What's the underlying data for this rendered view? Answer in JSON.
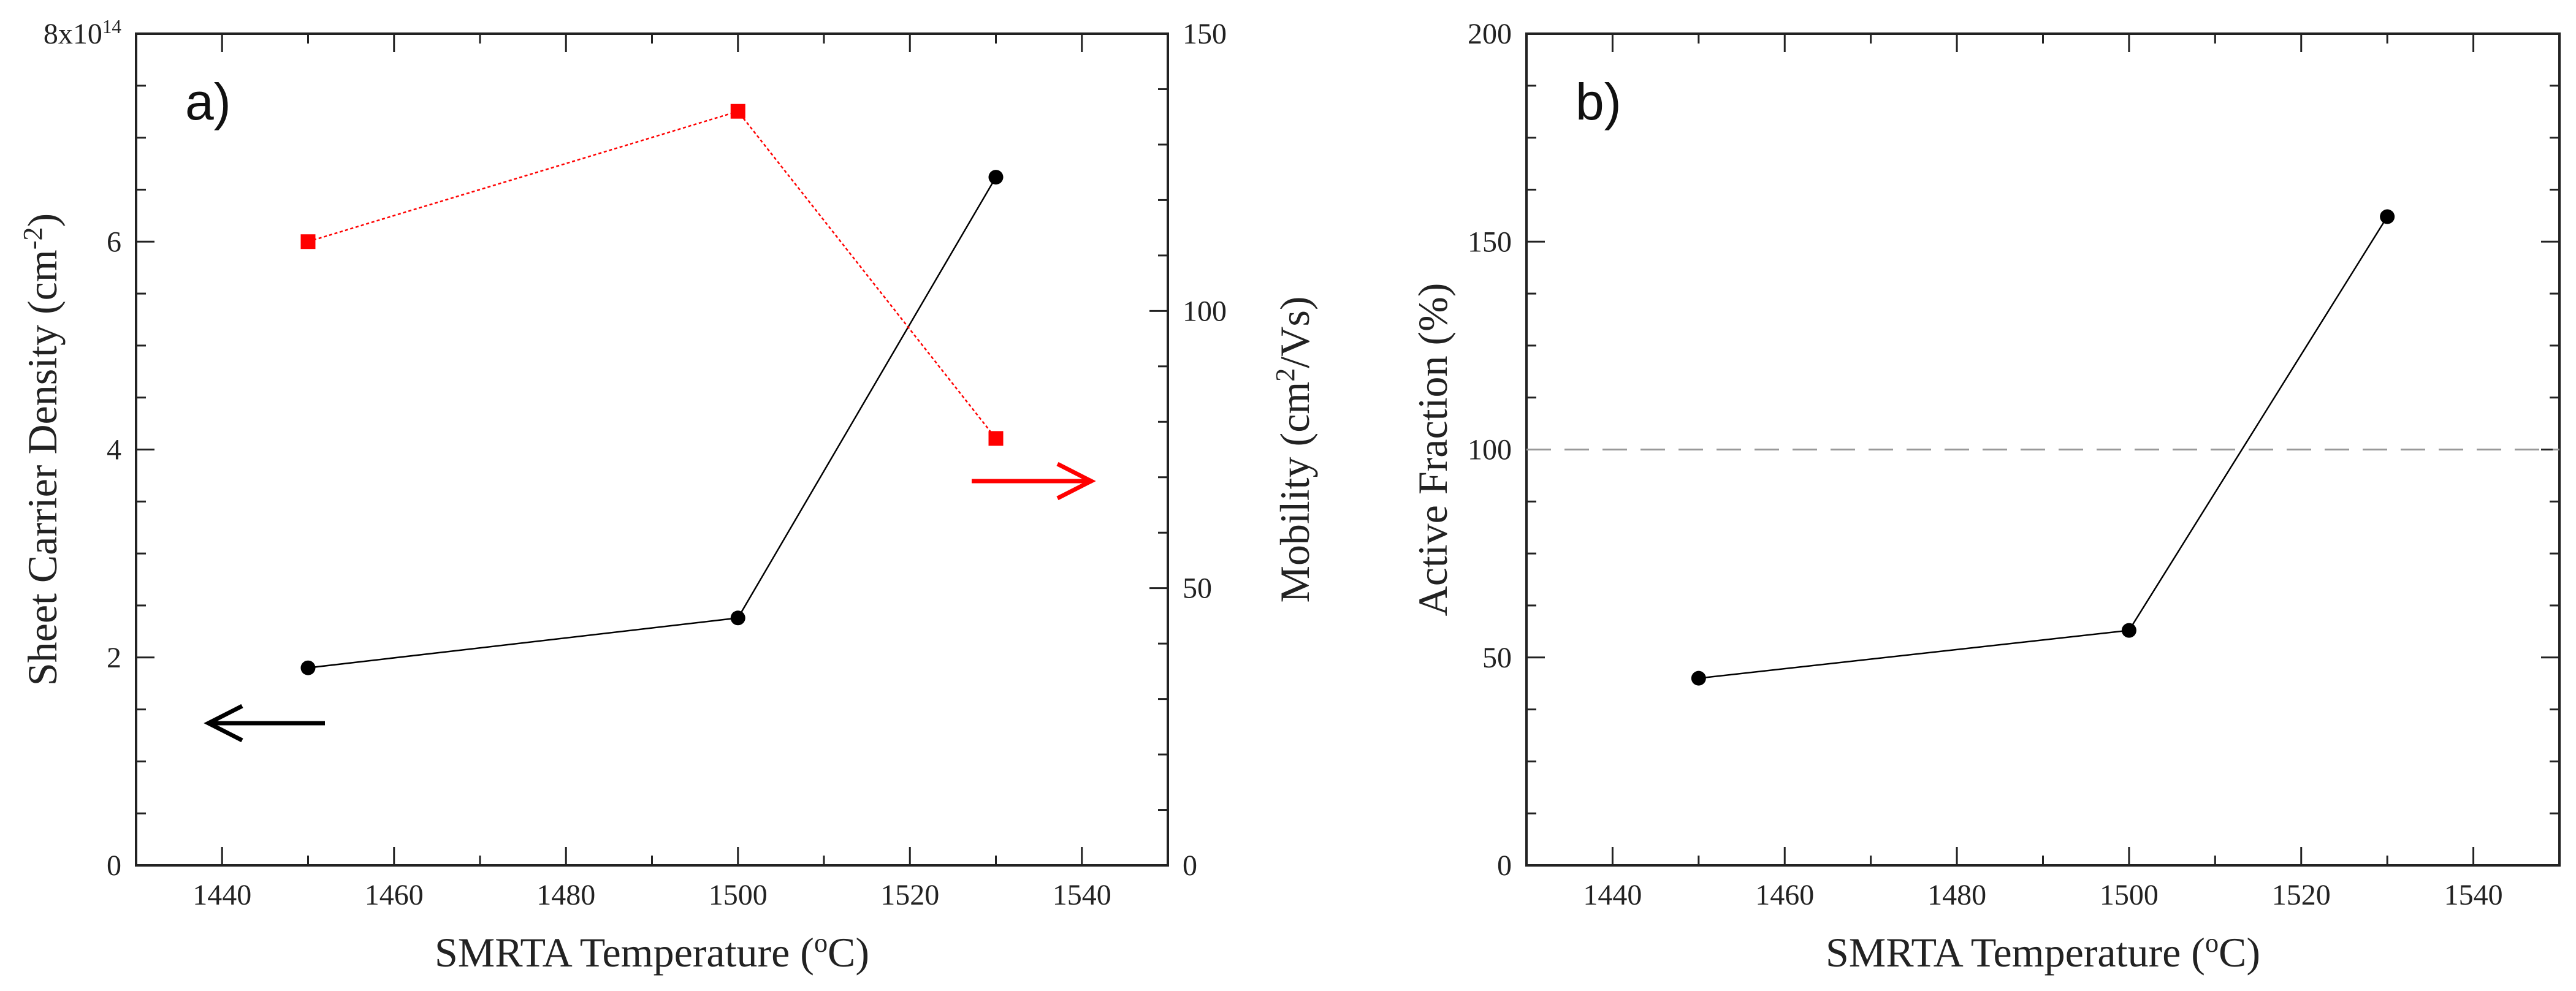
{
  "chart_data": [
    {
      "id": "a",
      "type": "line",
      "panel_label": "a)",
      "xlabel": {
        "main": "SMRTA Temperature (",
        "sup": "o",
        "tail": "C)"
      },
      "ylabel_left": {
        "main": "Sheet Carrier Density (cm",
        "sup": "-2",
        "tail": ")"
      },
      "ylabel_right": {
        "main": "Mobility (cm",
        "sup": "2",
        "tail": "/Vs)"
      },
      "xlim": [
        1430,
        1550
      ],
      "xticks": [
        1440,
        1460,
        1480,
        1500,
        1520,
        1540
      ],
      "xtick_labels": [
        "1440",
        "1460",
        "1480",
        "1500",
        "1520",
        "1540"
      ],
      "ylim_left": [
        0,
        8
      ],
      "yticks_left": [
        0,
        2,
        4,
        6
      ],
      "ytick_labels_left": [
        "0",
        "2",
        "4",
        "6"
      ],
      "ytop_left_label": {
        "main": "8x10",
        "sup": "14"
      },
      "ylim_right": [
        0,
        150
      ],
      "yticks_right": [
        0,
        50,
        100,
        150
      ],
      "ytick_labels_right": [
        "0",
        "50",
        "100",
        "150"
      ],
      "series": [
        {
          "name": "Sheet Carrier Density",
          "axis": "left",
          "color": "#000000",
          "marker": "circle",
          "x": [
            1450,
            1500,
            1530
          ],
          "y": [
            1.9,
            2.38,
            6.62
          ]
        },
        {
          "name": "Mobility",
          "axis": "right",
          "color": "#ff0000",
          "marker": "square",
          "x": [
            1450,
            1500,
            1530
          ],
          "y": [
            112.5,
            136,
            77
          ]
        }
      ],
      "annotations": [
        {
          "type": "arrow",
          "direction": "left",
          "color": "#000000",
          "meaning": "left axis"
        },
        {
          "type": "arrow",
          "direction": "right",
          "color": "#ff0000",
          "meaning": "right axis"
        }
      ]
    },
    {
      "id": "b",
      "type": "line",
      "panel_label": "b)",
      "xlabel": {
        "main": "SMRTA Temperature (",
        "sup": "o",
        "tail": "C)"
      },
      "ylabel_left": {
        "main": "Active Fraction (%)"
      },
      "xlim": [
        1430,
        1550
      ],
      "xticks": [
        1440,
        1460,
        1480,
        1500,
        1520,
        1540
      ],
      "xtick_labels": [
        "1440",
        "1460",
        "1480",
        "1500",
        "1520",
        "1540"
      ],
      "ylim_left": [
        0,
        200
      ],
      "yticks_left": [
        0,
        50,
        100,
        150,
        200
      ],
      "ytick_labels_left": [
        "0",
        "50",
        "100",
        "150",
        "200"
      ],
      "reference_line": {
        "y": 100,
        "style": "dashed",
        "color": "#999999"
      },
      "series": [
        {
          "name": "Active Fraction",
          "axis": "left",
          "color": "#000000",
          "marker": "circle",
          "x": [
            1450,
            1500,
            1530
          ],
          "y": [
            45,
            56.5,
            156
          ]
        }
      ]
    }
  ]
}
